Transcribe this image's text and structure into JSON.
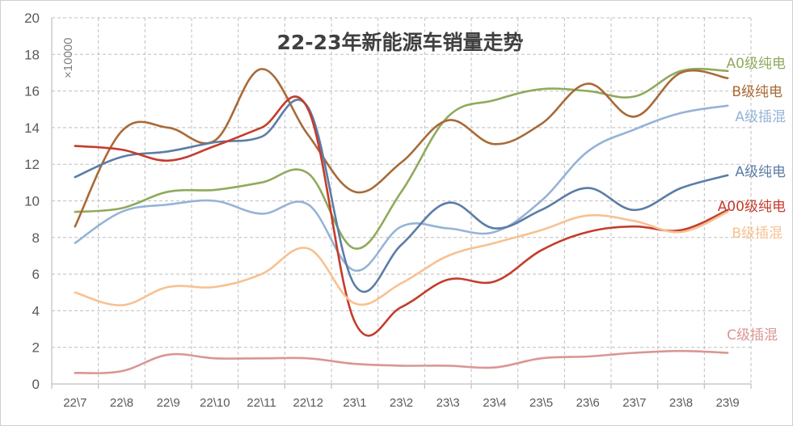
{
  "chart_data": {
    "type": "line",
    "title": "22-23年新能源车销量走势",
    "unit_label": "×10000",
    "categories": [
      "22\\7",
      "22\\8",
      "22\\9",
      "22\\10",
      "22\\11",
      "22\\12",
      "23\\1",
      "23\\2",
      "23\\3",
      "23\\4",
      "23\\5",
      "23\\6",
      "23\\7",
      "23\\8",
      "23\\9"
    ],
    "ylim": [
      0,
      20
    ],
    "yticks": [
      0,
      2,
      4,
      6,
      8,
      10,
      12,
      14,
      16,
      18,
      20
    ],
    "grid": true,
    "legend": "series labels at right end of lines",
    "series": [
      {
        "name": "A0级纯电",
        "color": "#8faa5c",
        "values": [
          9.4,
          9.6,
          10.5,
          10.6,
          11.0,
          11.5,
          7.4,
          10.5,
          14.6,
          15.5,
          16.1,
          16.0,
          15.7,
          17.1,
          17.1
        ]
      },
      {
        "name": "B级纯电",
        "color": "#a86a37",
        "values": [
          8.6,
          13.8,
          14.0,
          13.3,
          17.2,
          13.6,
          10.5,
          12.1,
          14.4,
          13.1,
          14.2,
          16.4,
          14.6,
          17.0,
          16.7
        ]
      },
      {
        "name": "A级插混",
        "color": "#95b3d7",
        "values": [
          7.7,
          9.4,
          9.8,
          10.0,
          9.3,
          9.8,
          6.2,
          8.6,
          8.5,
          8.3,
          10.0,
          12.7,
          13.9,
          14.8,
          15.2
        ]
      },
      {
        "name": "A级纯电",
        "color": "#5b7da6",
        "values": [
          11.3,
          12.4,
          12.7,
          13.2,
          13.5,
          15.1,
          5.4,
          7.6,
          9.9,
          8.5,
          9.5,
          10.7,
          9.5,
          10.7,
          11.4
        ]
      },
      {
        "name": "A00级纯电",
        "color": "#c43c2c",
        "values": [
          13.0,
          12.8,
          12.2,
          13.0,
          14.0,
          15.0,
          3.4,
          4.2,
          5.7,
          5.6,
          7.3,
          8.3,
          8.6,
          8.4,
          9.5
        ]
      },
      {
        "name": "B级插混",
        "color": "#f7c191",
        "values": [
          5.0,
          4.3,
          5.3,
          5.3,
          6.0,
          7.4,
          4.4,
          5.5,
          7.0,
          7.7,
          8.4,
          9.2,
          8.9,
          8.3,
          9.4
        ]
      },
      {
        "name": "C级插混",
        "color": "#d99694",
        "values": [
          0.6,
          0.7,
          1.6,
          1.4,
          1.4,
          1.4,
          1.1,
          1.0,
          1.0,
          0.9,
          1.4,
          1.5,
          1.7,
          1.8,
          1.7
        ]
      }
    ]
  }
}
